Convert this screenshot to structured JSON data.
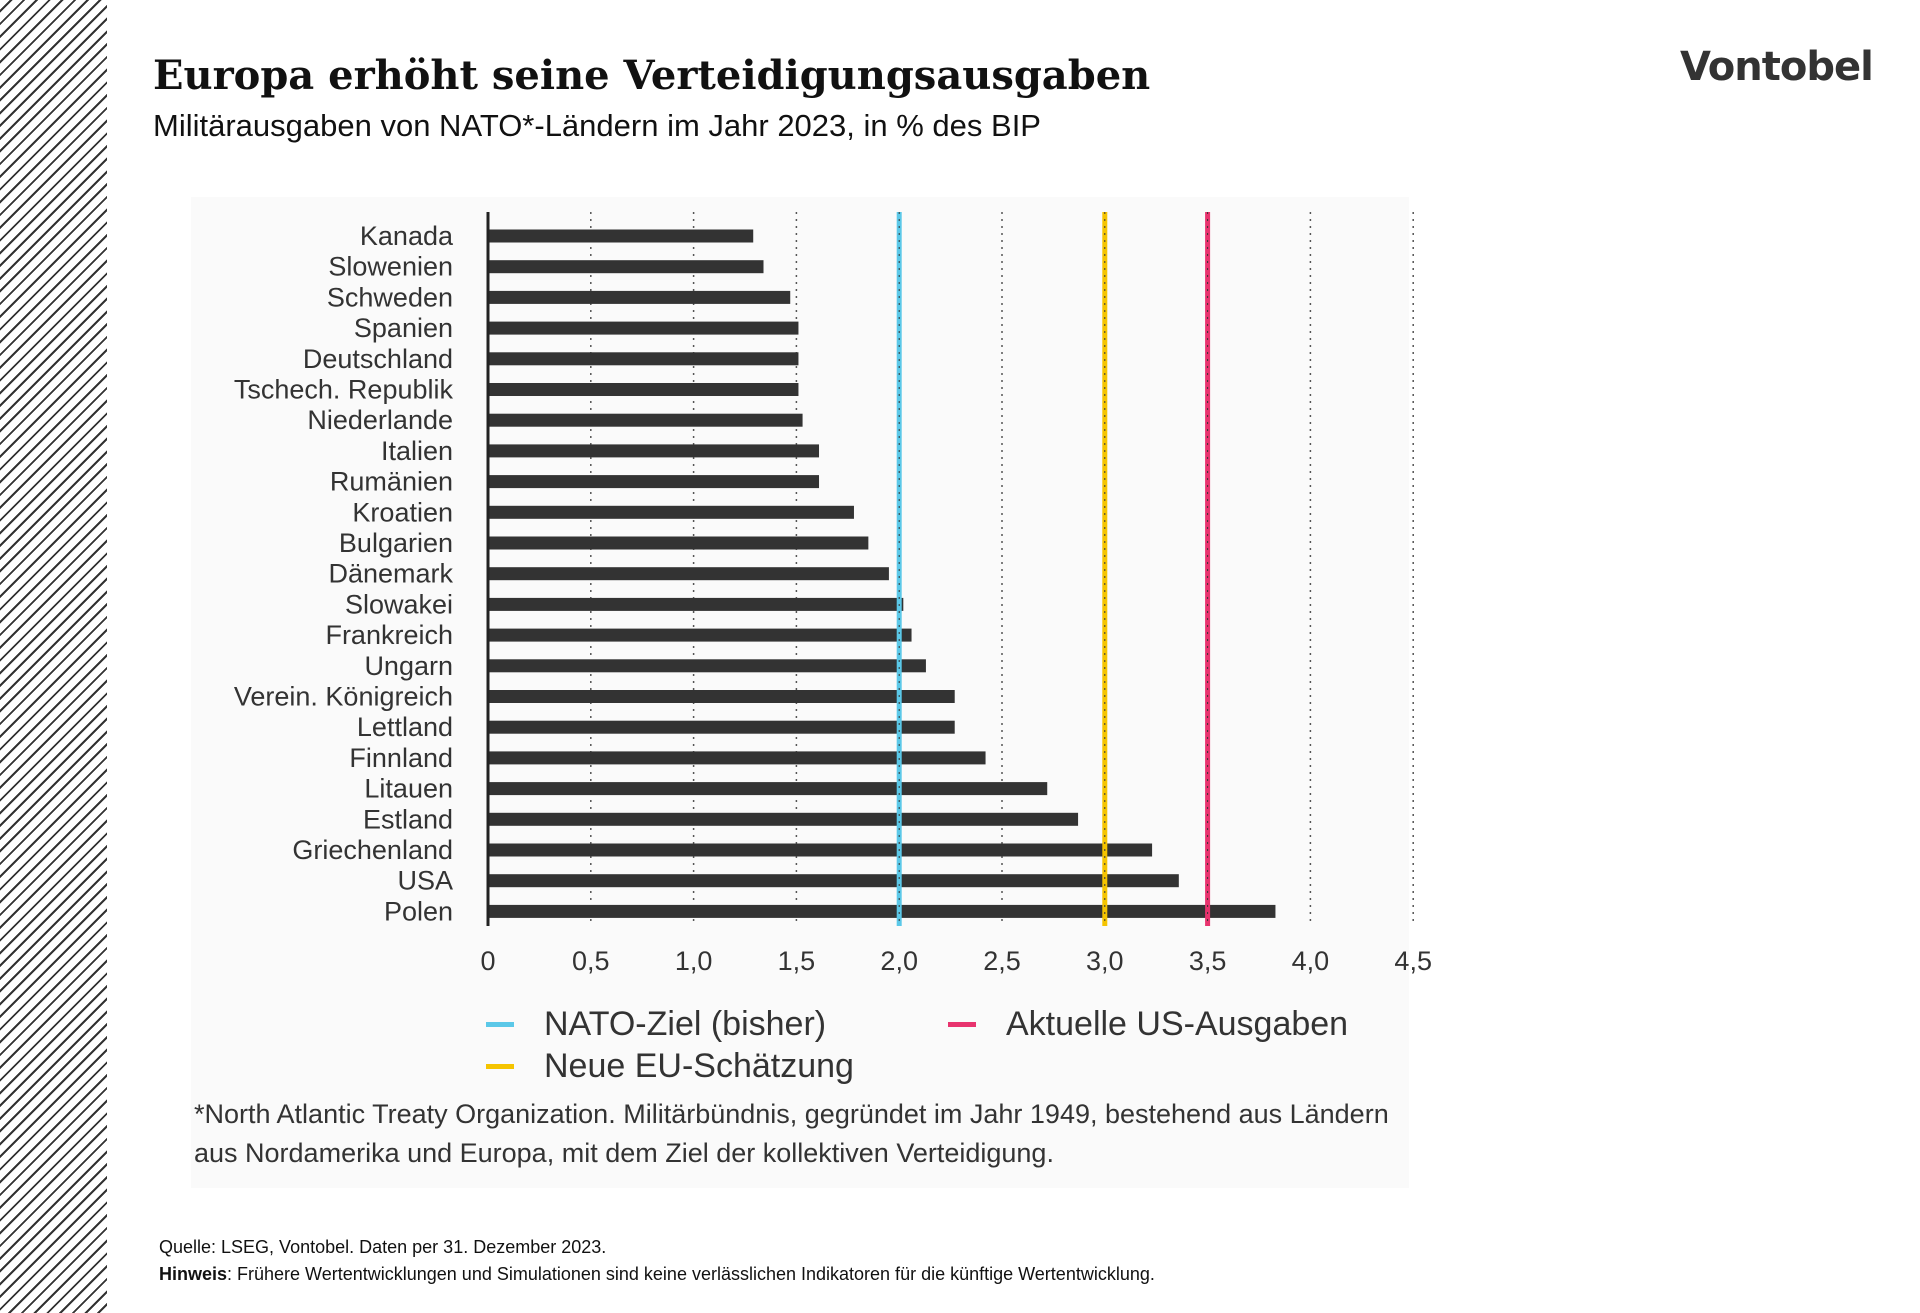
{
  "header": {
    "title": "Europa erhöht seine Verteidigungsausgaben",
    "subtitle": "Militärausgaben von NATO*-Ländern im Jahr 2023, in % des BIP",
    "logo": "Vontobel"
  },
  "chart_data": {
    "type": "bar",
    "orientation": "horizontal",
    "categories": [
      "Kanada",
      "Slowenien",
      "Schweden",
      "Spanien",
      "Deutschland",
      "Tschech. Republik",
      "Niederlande",
      "Italien",
      "Rumänien",
      "Kroatien",
      "Bulgarien",
      "Dänemark",
      "Slowakei",
      "Frankreich",
      "Ungarn",
      "Verein. Königreich",
      "Lettland",
      "Finnland",
      "Litauen",
      "Estland",
      "Griechenland",
      "USA",
      "Polen"
    ],
    "values": [
      1.29,
      1.34,
      1.47,
      1.51,
      1.51,
      1.51,
      1.53,
      1.61,
      1.61,
      1.78,
      1.85,
      1.95,
      2.02,
      2.06,
      2.13,
      2.27,
      2.27,
      2.42,
      2.72,
      2.87,
      3.23,
      3.36,
      3.83
    ],
    "xlim": [
      0,
      4.5
    ],
    "xticks": [
      "0",
      "0,5",
      "1,0",
      "1,5",
      "2,0",
      "2,5",
      "3,0",
      "3,5",
      "4,0",
      "4,5"
    ],
    "grid": "vertical dotted",
    "bar_color": "#333333",
    "reference_lines": [
      {
        "name": "NATO-Ziel (bisher)",
        "value": 2.0,
        "color": "#5bc8e8"
      },
      {
        "name": "Neue EU-Schätzung",
        "value": 3.0,
        "color": "#f5c400"
      },
      {
        "name": "Aktuelle US-Ausgaben",
        "value": 3.5,
        "color": "#e8336e"
      }
    ],
    "legend_placement": "bottom"
  },
  "footnote": "*North Atlantic Treaty Organization. Militärbündnis, gegründet im Jahr 1949, bestehend aus Ländern aus Nordamerika und Europa, mit dem Ziel der kollektiven Verteidigung.",
  "source": {
    "line1": "Quelle: LSEG, Vontobel. Daten per 31. Dezember 2023.",
    "hint_label": "Hinweis",
    "hint_text": ": Frühere Wertentwicklungen und Simulationen sind keine verlässlichen Indikatoren für die künftige Wertentwicklung."
  }
}
